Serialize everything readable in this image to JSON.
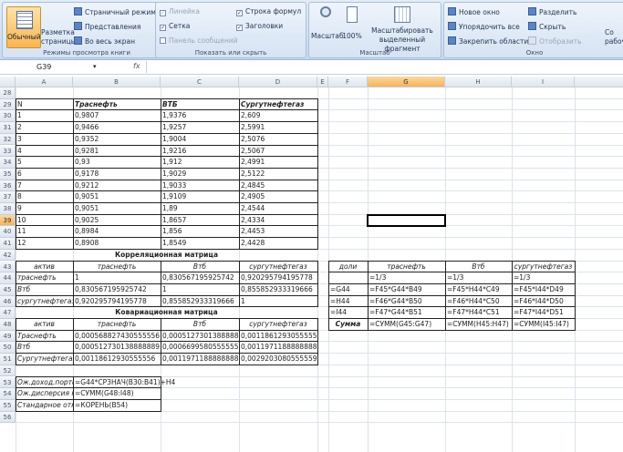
{
  "ribbon": {
    "groups": {
      "views": {
        "label": "Режимы просмотра книги",
        "normal": "Обычный",
        "page_layout": "Разметка страницы",
        "page_break": "Страничный режим",
        "custom_views": "Представления",
        "full_screen": "Во весь экран"
      },
      "show": {
        "label": "Показать или скрыть",
        "ruler": "Линейка",
        "gridlines": "Сетка",
        "message_bar": "Панель сообщений",
        "formula_bar": "Строка формул",
        "headings": "Заголовки"
      },
      "zoom": {
        "label": "Масштаб",
        "zoom": "Масштаб",
        "zoom100": "100%",
        "zoom_sel": "Масштабировать выделенный фрагмент"
      },
      "window": {
        "label": "Окно",
        "new_window": "Новое окно",
        "arrange": "Упорядочить все",
        "freeze": "Закрепить области",
        "split": "Разделить",
        "hide": "Скрыть",
        "unhide": "Отобразить",
        "save_ws": "Со рабоч"
      }
    }
  },
  "formula_bar": {
    "name_box": "G39",
    "fx": "fx",
    "formula": ""
  },
  "columns": [
    "A",
    "B",
    "C",
    "D",
    "E",
    "F",
    "G",
    "H",
    "I"
  ],
  "selected": {
    "row": "39",
    "col": "G"
  },
  "rows": [
    "28",
    "29",
    "30",
    "31",
    "32",
    "33",
    "34",
    "35",
    "36",
    "37",
    "38",
    "39",
    "40",
    "41",
    "42",
    "43",
    "44",
    "45",
    "46",
    "47",
    "48",
    "49",
    "50",
    "51",
    "52",
    "53",
    "54",
    "55",
    "56"
  ],
  "cells": {
    "29": {
      "A": "N",
      "B": "Трaснефть",
      "C": "ВТБ",
      "D": "Сургутнефтегаз"
    },
    "30": {
      "A": "1",
      "B": "0,9807",
      "C": "1,9376",
      "D": "2,609"
    },
    "31": {
      "A": "2",
      "B": "0,9466",
      "C": "1,9257",
      "D": "2,5991"
    },
    "32": {
      "A": "3",
      "B": "0,9352",
      "C": "1,9004",
      "D": "2,5076"
    },
    "33": {
      "A": "4",
      "B": "0,9281",
      "C": "1,9216",
      "D": "2,5067"
    },
    "34": {
      "A": "5",
      "B": "0,93",
      "C": "1,912",
      "D": "2,4991"
    },
    "35": {
      "A": "6",
      "B": "0,9178",
      "C": "1,9029",
      "D": "2,5122"
    },
    "36": {
      "A": "7",
      "B": "0,9212",
      "C": "1,9033",
      "D": "2,4845"
    },
    "37": {
      "A": "8",
      "B": "0,9051",
      "C": "1,9109",
      "D": "2,4905"
    },
    "38": {
      "A": "9",
      "B": "0,9051",
      "C": "1,89",
      "D": "2,4544"
    },
    "39": {
      "A": "10",
      "B": "0,9025",
      "C": "1,8657",
      "D": "2,4334"
    },
    "40": {
      "A": "11",
      "B": "0,8984",
      "C": "1,856",
      "D": "2,4453"
    },
    "41": {
      "A": "12",
      "B": "0,8908",
      "C": "1,8549",
      "D": "2,4428"
    },
    "42": {
      "A": "Корреляционная матрица"
    },
    "43": {
      "A": "актив",
      "B": "трaснефть",
      "C": "Втб",
      "D": "сургутнефтегаз",
      "F": "доли",
      "G": "трaснефть",
      "H": "Втб",
      "I": "сургутнефтегаз"
    },
    "44": {
      "A": "трaснефть",
      "B": "1",
      "C": "0,830567195925742",
      "D": "0,920295794195778",
      "G": "=1/3",
      "H": "=1/3",
      "I": "=1/3"
    },
    "45": {
      "A": "Втб",
      "B": "0,830567195925742",
      "C": "1",
      "D": "0,855852933319666",
      "F": "=G44",
      "G": "=F45*G44*B49",
      "H": "=F45*H44*C49",
      "I": "=F45*I44*D49"
    },
    "46": {
      "A": "сургутнефтегаз",
      "B": "0,920295794195778",
      "C": "0,855852933319666",
      "D": "1",
      "F": "=H44",
      "G": "=F46*G44*B50",
      "H": "=F46*H44*C50",
      "I": "=F46*I44*D50"
    },
    "47": {
      "A": "Ковариационная матрица",
      "F": "=I44",
      "G": "=F47*G44*B51",
      "H": "=F47*H44*C51",
      "I": "=F47*I44*D51"
    },
    "48": {
      "A": "актив",
      "B": "трaснефть",
      "C": "Втб",
      "D": "сургутнефтегаз",
      "F": "Сумма",
      "G": "=СУММ(G45:G47)",
      "H": "=СУММ(H45:H47)",
      "I": "=СУММ(I45:I47)"
    },
    "49": {
      "A": "Трaснефть",
      "B": "0,000568827430555556",
      "C": "0,000512730138888888",
      "D": "0,00118612930555556"
    },
    "50": {
      "A": "Втб",
      "B": "0,000512730138888889",
      "C": "0,000669958055555555",
      "D": "0,00119711888888889"
    },
    "51": {
      "A": "Сургутнефтегаз",
      "B": "0,00118612930555556",
      "C": "0,00119711888888889",
      "D": "0,00292030805555596"
    },
    "53": {
      "A": "Ож.доход.портф",
      "B": "=G44*СРЗНАЧ(B30:B41)+H4"
    },
    "54": {
      "A": "Ож.дисперсия по",
      "B": "=СУММ(G48:I48)"
    },
    "55": {
      "A": "Стандарное отк",
      "B": "=КОРЕНЬ(B54)"
    }
  }
}
